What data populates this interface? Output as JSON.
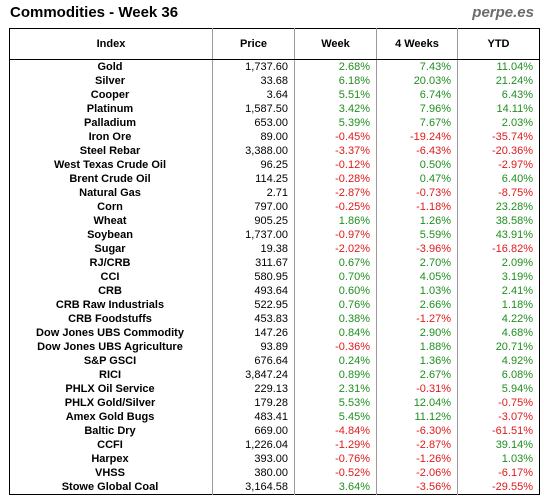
{
  "title": "Commodities - Week 36",
  "site": "perpe.es",
  "columns": [
    "Index",
    "Price",
    "Week",
    "4 Weeks",
    "YTD"
  ],
  "colors": {
    "positive": "#1f8f1f",
    "negative": "#e01a1a"
  },
  "rows": [
    {
      "name": "Gold",
      "price": "1,737.60",
      "week": "2.68%",
      "w4": "7.43%",
      "ytd": "11.04%"
    },
    {
      "name": "Silver",
      "price": "33.68",
      "week": "6.18%",
      "w4": "20.03%",
      "ytd": "21.24%"
    },
    {
      "name": "Cooper",
      "price": "3.64",
      "week": "5.51%",
      "w4": "6.74%",
      "ytd": "6.43%"
    },
    {
      "name": "Platinum",
      "price": "1,587.50",
      "week": "3.42%",
      "w4": "7.96%",
      "ytd": "14.11%"
    },
    {
      "name": "Palladium",
      "price": "653.00",
      "week": "5.39%",
      "w4": "7.67%",
      "ytd": "2.03%"
    },
    {
      "name": "Iron Ore",
      "price": "89.00",
      "week": "-0.45%",
      "w4": "-19.24%",
      "ytd": "-35.74%"
    },
    {
      "name": "Steel Rebar",
      "price": "3,388.00",
      "week": "-3.37%",
      "w4": "-6.43%",
      "ytd": "-20.36%"
    },
    {
      "name": "West Texas Crude Oil",
      "price": "96.25",
      "week": "-0.12%",
      "w4": "0.50%",
      "ytd": "-2.97%"
    },
    {
      "name": "Brent Crude Oil",
      "price": "114.25",
      "week": "-0.28%",
      "w4": "0.47%",
      "ytd": "6.40%"
    },
    {
      "name": "Natural Gas",
      "price": "2.71",
      "week": "-2.87%",
      "w4": "-0.73%",
      "ytd": "-8.75%"
    },
    {
      "name": "Corn",
      "price": "797.00",
      "week": "-0.25%",
      "w4": "-1.18%",
      "ytd": "23.28%"
    },
    {
      "name": "Wheat",
      "price": "905.25",
      "week": "1.86%",
      "w4": "1.26%",
      "ytd": "38.58%"
    },
    {
      "name": "Soybean",
      "price": "1,737.00",
      "week": "-0.97%",
      "w4": "5.59%",
      "ytd": "43.91%"
    },
    {
      "name": "Sugar",
      "price": "19.38",
      "week": "-2.02%",
      "w4": "-3.96%",
      "ytd": "-16.82%"
    },
    {
      "name": "RJ/CRB",
      "price": "311.67",
      "week": "0.67%",
      "w4": "2.70%",
      "ytd": "2.09%"
    },
    {
      "name": "CCI",
      "price": "580.95",
      "week": "0.70%",
      "w4": "4.05%",
      "ytd": "3.19%"
    },
    {
      "name": "CRB",
      "price": "493.64",
      "week": "0.60%",
      "w4": "1.03%",
      "ytd": "2.41%"
    },
    {
      "name": "CRB Raw Industrials",
      "price": "522.95",
      "week": "0.76%",
      "w4": "2.66%",
      "ytd": "1.18%"
    },
    {
      "name": "CRB Foodstuffs",
      "price": "453.83",
      "week": "0.38%",
      "w4": "-1.27%",
      "ytd": "4.22%"
    },
    {
      "name": "Dow Jones UBS Commodity",
      "price": "147.26",
      "week": "0.84%",
      "w4": "2.90%",
      "ytd": "4.68%"
    },
    {
      "name": "Dow Jones UBS Agriculture",
      "price": "93.89",
      "week": "-0.36%",
      "w4": "1.88%",
      "ytd": "20.71%"
    },
    {
      "name": "S&P GSCI",
      "price": "676.64",
      "week": "0.24%",
      "w4": "1.36%",
      "ytd": "4.92%"
    },
    {
      "name": "RICI",
      "price": "3,847.24",
      "week": "0.89%",
      "w4": "2.67%",
      "ytd": "6.08%"
    },
    {
      "name": "PHLX Oil Service",
      "price": "229.13",
      "week": "2.31%",
      "w4": "-0.31%",
      "ytd": "5.94%"
    },
    {
      "name": "PHLX Gold/Silver",
      "price": "179.28",
      "week": "5.53%",
      "w4": "12.04%",
      "ytd": "-0.75%"
    },
    {
      "name": "Amex Gold Bugs",
      "price": "483.41",
      "week": "5.45%",
      "w4": "11.12%",
      "ytd": "-3.07%"
    },
    {
      "name": "Baltic Dry",
      "price": "669.00",
      "week": "-4.84%",
      "w4": "-6.30%",
      "ytd": "-61.51%"
    },
    {
      "name": "CCFI",
      "price": "1,226.04",
      "week": "-1.29%",
      "w4": "-2.87%",
      "ytd": "39.14%"
    },
    {
      "name": "Harpex",
      "price": "393.00",
      "week": "-0.76%",
      "w4": "-1.26%",
      "ytd": "1.03%"
    },
    {
      "name": "VHSS",
      "price": "380.00",
      "week": "-0.52%",
      "w4": "-2.06%",
      "ytd": "-6.17%"
    },
    {
      "name": "Stowe Global Coal",
      "price": "3,164.58",
      "week": "3.64%",
      "w4": "-3.56%",
      "ytd": "-29.55%"
    }
  ]
}
